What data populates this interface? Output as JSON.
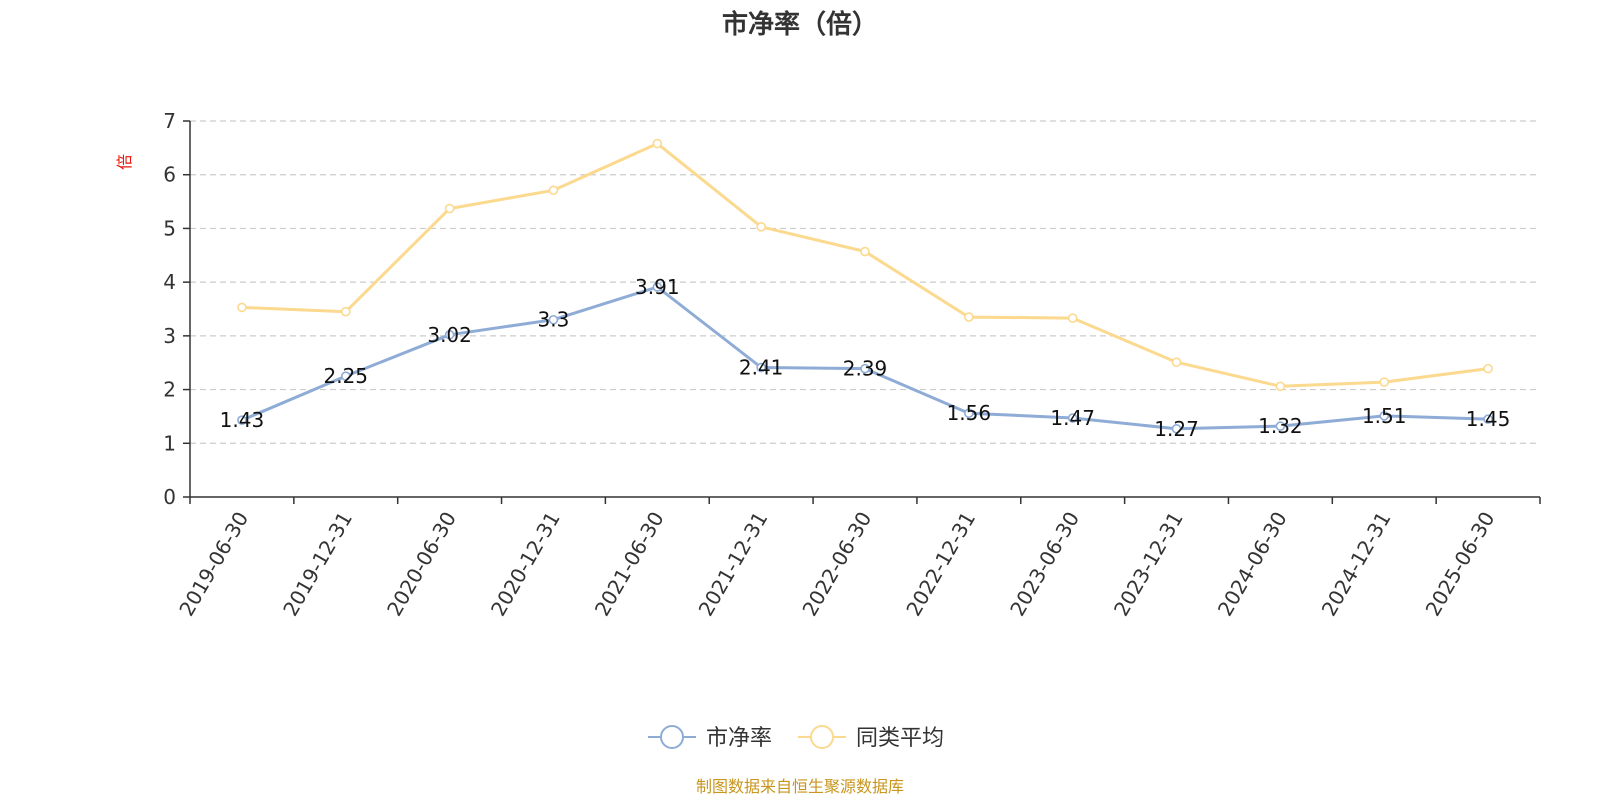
{
  "chart_data": {
    "type": "line",
    "title": "市净率（倍）",
    "ylabel": "倍",
    "ylim": [
      0,
      7
    ],
    "yticks": [
      0,
      1,
      2,
      3,
      4,
      5,
      6,
      7
    ],
    "grid": true,
    "legend_position": "bottom-center",
    "categories": [
      "2019-06-30",
      "2019-12-31",
      "2020-06-30",
      "2020-12-31",
      "2021-06-30",
      "2021-12-31",
      "2022-06-30",
      "2022-12-31",
      "2023-06-30",
      "2023-12-31",
      "2024-06-30",
      "2024-12-31",
      "2025-06-30"
    ],
    "series": [
      {
        "name": "市净率",
        "color": "#8eacd6",
        "show_labels": true,
        "values": [
          1.43,
          2.25,
          3.02,
          3.3,
          3.91,
          2.41,
          2.39,
          1.56,
          1.47,
          1.27,
          1.32,
          1.51,
          1.45
        ]
      },
      {
        "name": "同类平均",
        "color": "#fbd98e",
        "show_labels": false,
        "values": [
          3.53,
          3.45,
          5.37,
          5.71,
          6.58,
          5.03,
          4.57,
          3.35,
          3.33,
          2.51,
          2.06,
          2.14,
          2.39
        ]
      }
    ]
  },
  "source_note": "制图数据来自恒生聚源数据库"
}
